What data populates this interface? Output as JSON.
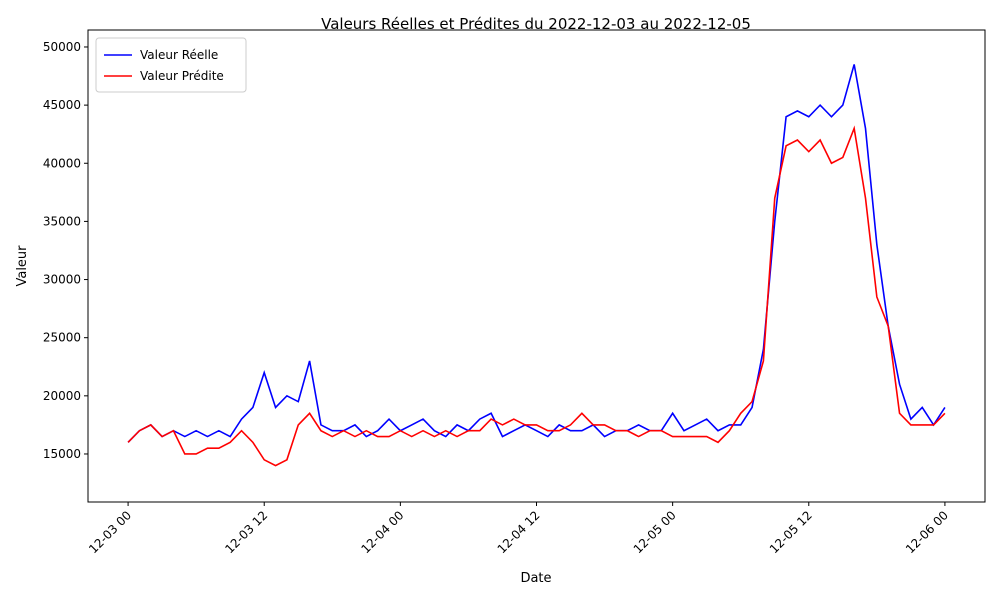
{
  "chart_data": {
    "type": "line",
    "title": "Valeurs Réelles et Prédites du 2022-12-03 au 2022-12-05",
    "x_label": "Date",
    "y_label": "Valeur",
    "x": [
      "2022-12-03 00",
      "2022-12-03 01",
      "2022-12-03 02",
      "2022-12-03 03",
      "2022-12-03 04",
      "2022-12-03 05",
      "2022-12-03 06",
      "2022-12-03 07",
      "2022-12-03 08",
      "2022-12-03 09",
      "2022-12-03 10",
      "2022-12-03 11",
      "2022-12-03 12",
      "2022-12-03 13",
      "2022-12-03 14",
      "2022-12-03 15",
      "2022-12-03 16",
      "2022-12-03 17",
      "2022-12-03 18",
      "2022-12-03 19",
      "2022-12-03 20",
      "2022-12-03 21",
      "2022-12-03 22",
      "2022-12-03 23",
      "2022-12-04 00",
      "2022-12-04 01",
      "2022-12-04 02",
      "2022-12-04 03",
      "2022-12-04 04",
      "2022-12-04 05",
      "2022-12-04 06",
      "2022-12-04 07",
      "2022-12-04 08",
      "2022-12-04 09",
      "2022-12-04 10",
      "2022-12-04 11",
      "2022-12-04 12",
      "2022-12-04 13",
      "2022-12-04 14",
      "2022-12-04 15",
      "2022-12-04 16",
      "2022-12-04 17",
      "2022-12-04 18",
      "2022-12-04 19",
      "2022-12-04 20",
      "2022-12-04 21",
      "2022-12-04 22",
      "2022-12-04 23",
      "2022-12-05 00",
      "2022-12-05 01",
      "2022-12-05 02",
      "2022-12-05 03",
      "2022-12-05 04",
      "2022-12-05 05",
      "2022-12-05 06",
      "2022-12-05 07",
      "2022-12-05 08",
      "2022-12-05 09",
      "2022-12-05 10",
      "2022-12-05 11",
      "2022-12-05 12",
      "2022-12-05 13",
      "2022-12-05 14",
      "2022-12-05 15",
      "2022-12-05 16",
      "2022-12-05 17",
      "2022-12-05 18",
      "2022-12-05 19",
      "2022-12-05 20",
      "2022-12-05 21",
      "2022-12-05 22",
      "2022-12-05 23",
      "2022-12-06 00"
    ],
    "series": [
      {
        "name": "Valeur Réelle",
        "color": "#0000ff",
        "values": [
          16000,
          17000,
          17500,
          16500,
          17000,
          16500,
          17000,
          16500,
          17000,
          16500,
          18000,
          19000,
          22000,
          19000,
          20000,
          19500,
          23000,
          17500,
          17000,
          17000,
          17500,
          16500,
          17000,
          18000,
          17000,
          17500,
          18000,
          17000,
          16500,
          17500,
          17000,
          18000,
          18500,
          16500,
          17000,
          17500,
          17000,
          16500,
          17500,
          17000,
          17000,
          17500,
          16500,
          17000,
          17000,
          17500,
          17000,
          17000,
          18500,
          17000,
          17500,
          18000,
          17000,
          17500,
          17500,
          19000,
          24000,
          35000,
          44000,
          44500,
          44000,
          45000,
          44000,
          45000,
          48500,
          43000,
          33000,
          26000,
          21000,
          18000,
          19000,
          17500,
          19000
        ]
      },
      {
        "name": "Valeur Prédite",
        "color": "#ff0000",
        "values": [
          16000,
          17000,
          17500,
          16500,
          17000,
          15000,
          15000,
          15500,
          15500,
          16000,
          17000,
          16000,
          14500,
          14000,
          14500,
          17500,
          18500,
          17000,
          16500,
          17000,
          16500,
          17000,
          16500,
          16500,
          17000,
          16500,
          17000,
          16500,
          17000,
          16500,
          17000,
          17000,
          18000,
          17500,
          18000,
          17500,
          17500,
          17000,
          17000,
          17500,
          18500,
          17500,
          17500,
          17000,
          17000,
          16500,
          17000,
          17000,
          16500,
          16500,
          16500,
          16500,
          16000,
          17000,
          18500,
          19500,
          23000,
          37000,
          41500,
          42000,
          41000,
          42000,
          40000,
          40500,
          43000,
          37000,
          28500,
          26000,
          18500,
          17500,
          17500,
          17500,
          18500
        ]
      }
    ],
    "xlim": [
      "2022-12-02 20:28",
      "2022-12-06 03:32"
    ],
    "xticks": [
      {
        "value": "2022-12-03 00",
        "label": "12-03 00"
      },
      {
        "value": "2022-12-03 12",
        "label": "12-03 12"
      },
      {
        "value": "2022-12-04 00",
        "label": "12-04 00"
      },
      {
        "value": "2022-12-04 12",
        "label": "12-04 12"
      },
      {
        "value": "2022-12-05 00",
        "label": "12-05 00"
      },
      {
        "value": "2022-12-05 12",
        "label": "12-05 12"
      },
      {
        "value": "2022-12-06 00",
        "label": "12-06 00"
      }
    ],
    "ylim": [
      10870,
      51460
    ],
    "yticks": [
      15000,
      20000,
      25000,
      30000,
      35000,
      40000,
      45000,
      50000
    ],
    "legend": "upper left",
    "grid": false
  }
}
